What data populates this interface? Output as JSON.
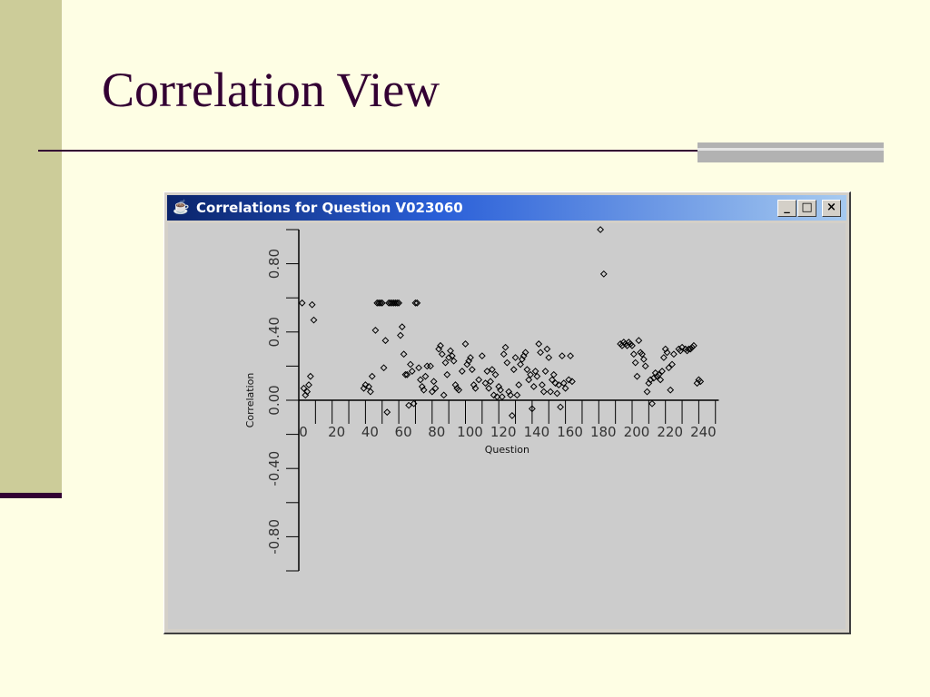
{
  "slide": {
    "title": "Correlation View",
    "colors": {
      "background": "#FEFEE4",
      "accent_band": "#CCCC99",
      "title_text": "#330033",
      "rule": "#330033"
    }
  },
  "window": {
    "title": "Correlations for Question V023060",
    "icon": "java-cup-icon",
    "buttons": {
      "minimize": "_",
      "maximize": "□",
      "close": "×"
    },
    "colors": {
      "titlebar_start": "#0A246A",
      "titlebar_end": "#A6CAF0",
      "face": "#D4D0C8",
      "plot_background": "#CCCCCC"
    }
  },
  "chart_data": {
    "type": "scatter",
    "xlabel": "Question",
    "ylabel": "Correlation",
    "xlim": [
      0,
      250
    ],
    "ylim": [
      -1.0,
      1.0
    ],
    "x_ticks": [
      0,
      20,
      40,
      60,
      80,
      100,
      120,
      140,
      160,
      180,
      200,
      220,
      240
    ],
    "x_tick_labels": [
      "0",
      "20",
      "40",
      "60",
      "80",
      "100",
      "120",
      "140",
      "160",
      "180",
      "200",
      "220",
      "240"
    ],
    "y_ticks": [
      -0.8,
      -0.4,
      0.0,
      0.4,
      0.8
    ],
    "y_tick_labels": [
      "-0.80",
      "-0.40",
      "0.00",
      "0.40",
      "0.80"
    ],
    "grid": false,
    "legend": "none",
    "marker": "hollow-diamond",
    "points": [
      [
        2,
        0.57
      ],
      [
        3,
        0.07
      ],
      [
        4,
        0.03
      ],
      [
        5,
        0.05
      ],
      [
        6,
        0.09
      ],
      [
        7,
        0.14
      ],
      [
        8,
        0.56
      ],
      [
        9,
        0.47
      ],
      [
        39,
        0.07
      ],
      [
        40,
        0.09
      ],
      [
        42,
        0.08
      ],
      [
        43,
        0.05
      ],
      [
        44,
        0.14
      ],
      [
        46,
        0.41
      ],
      [
        47,
        0.57
      ],
      [
        48,
        0.57
      ],
      [
        49,
        0.57
      ],
      [
        50,
        0.57
      ],
      [
        51,
        0.19
      ],
      [
        52,
        0.35
      ],
      [
        53,
        -0.07
      ],
      [
        54,
        0.57
      ],
      [
        55,
        0.57
      ],
      [
        56,
        0.57
      ],
      [
        57,
        0.57
      ],
      [
        58,
        0.57
      ],
      [
        59,
        0.57
      ],
      [
        60,
        0.57
      ],
      [
        61,
        0.38
      ],
      [
        62,
        0.43
      ],
      [
        63,
        0.27
      ],
      [
        64,
        0.15
      ],
      [
        65,
        0.15
      ],
      [
        66,
        -0.03
      ],
      [
        67,
        0.21
      ],
      [
        68,
        0.17
      ],
      [
        69,
        -0.02
      ],
      [
        70,
        0.57
      ],
      [
        71,
        0.57
      ],
      [
        72,
        0.19
      ],
      [
        73,
        0.12
      ],
      [
        74,
        0.08
      ],
      [
        75,
        0.06
      ],
      [
        76,
        0.14
      ],
      [
        77,
        0.2
      ],
      [
        79,
        0.2
      ],
      [
        80,
        0.05
      ],
      [
        81,
        0.11
      ],
      [
        82,
        0.07
      ],
      [
        84,
        0.3
      ],
      [
        85,
        0.32
      ],
      [
        86,
        0.27
      ],
      [
        87,
        0.03
      ],
      [
        88,
        0.22
      ],
      [
        89,
        0.15
      ],
      [
        90,
        0.25
      ],
      [
        91,
        0.29
      ],
      [
        92,
        0.26
      ],
      [
        93,
        0.23
      ],
      [
        94,
        0.09
      ],
      [
        95,
        0.07
      ],
      [
        96,
        0.06
      ],
      [
        98,
        0.17
      ],
      [
        100,
        0.33
      ],
      [
        101,
        0.21
      ],
      [
        102,
        0.23
      ],
      [
        103,
        0.25
      ],
      [
        104,
        0.18
      ],
      [
        105,
        0.09
      ],
      [
        106,
        0.07
      ],
      [
        108,
        0.12
      ],
      [
        110,
        0.26
      ],
      [
        112,
        0.1
      ],
      [
        113,
        0.17
      ],
      [
        114,
        0.07
      ],
      [
        115,
        0.11
      ],
      [
        116,
        0.18
      ],
      [
        117,
        0.03
      ],
      [
        118,
        0.15
      ],
      [
        119,
        0.02
      ],
      [
        120,
        0.08
      ],
      [
        121,
        0.06
      ],
      [
        122,
        0.02
      ],
      [
        123,
        0.27
      ],
      [
        124,
        0.31
      ],
      [
        125,
        0.22
      ],
      [
        126,
        0.05
      ],
      [
        127,
        0.03
      ],
      [
        128,
        -0.09
      ],
      [
        129,
        0.18
      ],
      [
        130,
        0.25
      ],
      [
        131,
        0.03
      ],
      [
        132,
        0.09
      ],
      [
        133,
        0.21
      ],
      [
        134,
        0.24
      ],
      [
        135,
        0.26
      ],
      [
        136,
        0.28
      ],
      [
        137,
        0.18
      ],
      [
        138,
        0.12
      ],
      [
        139,
        0.15
      ],
      [
        140,
        -0.05
      ],
      [
        141,
        0.08
      ],
      [
        142,
        0.17
      ],
      [
        143,
        0.14
      ],
      [
        144,
        0.33
      ],
      [
        145,
        0.28
      ],
      [
        146,
        0.09
      ],
      [
        147,
        0.05
      ],
      [
        148,
        0.17
      ],
      [
        149,
        0.3
      ],
      [
        150,
        0.25
      ],
      [
        151,
        0.05
      ],
      [
        152,
        0.12
      ],
      [
        153,
        0.15
      ],
      [
        154,
        0.1
      ],
      [
        155,
        0.04
      ],
      [
        156,
        0.09
      ],
      [
        157,
        -0.04
      ],
      [
        158,
        0.26
      ],
      [
        159,
        0.1
      ],
      [
        160,
        0.07
      ],
      [
        162,
        0.12
      ],
      [
        163,
        0.26
      ],
      [
        164,
        0.11
      ],
      [
        181,
        1.0
      ],
      [
        183,
        0.74
      ],
      [
        193,
        0.33
      ],
      [
        194,
        0.32
      ],
      [
        195,
        0.34
      ],
      [
        196,
        0.33
      ],
      [
        197,
        0.32
      ],
      [
        198,
        0.34
      ],
      [
        199,
        0.33
      ],
      [
        200,
        0.32
      ],
      [
        201,
        0.27
      ],
      [
        202,
        0.22
      ],
      [
        203,
        0.14
      ],
      [
        204,
        0.35
      ],
      [
        205,
        0.28
      ],
      [
        206,
        0.27
      ],
      [
        207,
        0.24
      ],
      [
        208,
        0.2
      ],
      [
        209,
        0.05
      ],
      [
        210,
        0.1
      ],
      [
        211,
        0.12
      ],
      [
        212,
        -0.02
      ],
      [
        213,
        0.13
      ],
      [
        214,
        0.16
      ],
      [
        215,
        0.14
      ],
      [
        216,
        0.15
      ],
      [
        217,
        0.12
      ],
      [
        218,
        0.17
      ],
      [
        219,
        0.25
      ],
      [
        220,
        0.3
      ],
      [
        221,
        0.28
      ],
      [
        222,
        0.19
      ],
      [
        223,
        0.06
      ],
      [
        224,
        0.21
      ],
      [
        225,
        0.27
      ],
      [
        228,
        0.3
      ],
      [
        229,
        0.29
      ],
      [
        230,
        0.31
      ],
      [
        232,
        0.3
      ],
      [
        233,
        0.29
      ],
      [
        234,
        0.3
      ],
      [
        235,
        0.3
      ],
      [
        236,
        0.31
      ],
      [
        237,
        0.32
      ],
      [
        239,
        0.1
      ],
      [
        240,
        0.12
      ],
      [
        241,
        0.11
      ]
    ]
  }
}
